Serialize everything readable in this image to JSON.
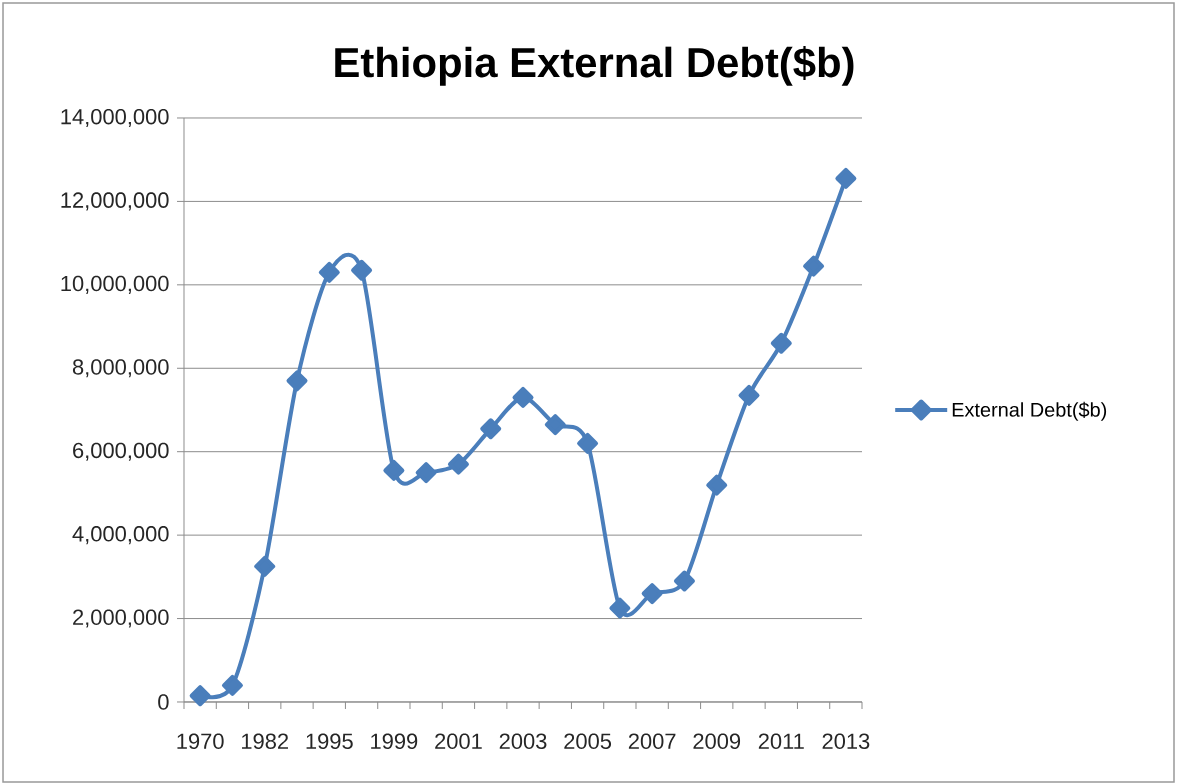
{
  "chart_data": {
    "type": "line",
    "title": "Ethiopia External Debt($b)",
    "categories": [
      "1970",
      null,
      "1982",
      null,
      "1995",
      null,
      "1999",
      null,
      "2001",
      null,
      "2003",
      null,
      "2005",
      null,
      "2007",
      null,
      "2009",
      null,
      "2011",
      null,
      "2013"
    ],
    "series": [
      {
        "name": "External Debt($b)",
        "color": "#4a7ebb",
        "values": [
          150000,
          400000,
          3250000,
          7700000,
          10300000,
          10350000,
          5550000,
          5500000,
          5700000,
          6550000,
          7300000,
          6650000,
          6200000,
          2250000,
          2600000,
          2900000,
          5200000,
          7350000,
          8600000,
          10450000,
          12550000
        ]
      }
    ],
    "ylim": [
      0,
      14000000
    ],
    "yticks": [
      0,
      {
        "value": 2000000,
        "label": "2,000,000"
      },
      {
        "value": 4000000,
        "label": "4,000,000"
      },
      {
        "value": 6000000,
        "label": "6,000,000"
      },
      {
        "value": 8000000,
        "label": "8,000,000"
      },
      {
        "value": 10000000,
        "label": "10,000,000"
      },
      {
        "value": 12000000,
        "label": "12,000,000"
      },
      {
        "value": 14000000,
        "label": "14,000,000"
      }
    ],
    "grid": "y",
    "legend": "right",
    "marker": "diamond",
    "line_style": "solid"
  }
}
